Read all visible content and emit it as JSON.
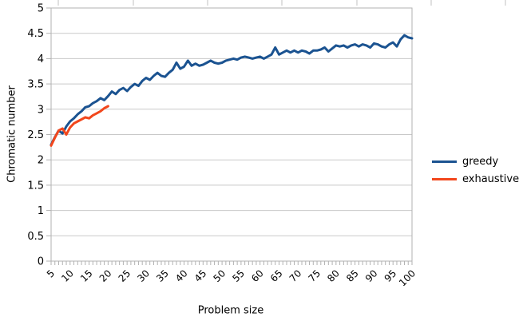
{
  "chart_data": {
    "type": "line",
    "title": "",
    "xlabel": "Problem size",
    "ylabel": "Chromatic number",
    "xlim": [
      5,
      100
    ],
    "ylim": [
      0,
      5
    ],
    "y_tick_step": 0.5,
    "y_tick_labels": [
      "0",
      "0.5",
      "1",
      "1.5",
      "2",
      "2.5",
      "3",
      "3.5",
      "4",
      "4.5",
      "5"
    ],
    "x_tick_label_step": 5,
    "x_minor_tick_step": 1,
    "grid": "horizontal-only",
    "legend_position": "right",
    "colors": {
      "grid": "#c9c9c9",
      "axis": "#b2b2b2",
      "text": "#000000",
      "background": "#ffffff"
    },
    "series": [
      {
        "name": "greedy",
        "color": "#1B5391",
        "x": [
          5,
          6,
          7,
          8,
          9,
          10,
          11,
          12,
          13,
          14,
          15,
          16,
          17,
          18,
          19,
          20,
          21,
          22,
          23,
          24,
          25,
          26,
          27,
          28,
          29,
          30,
          31,
          32,
          33,
          34,
          35,
          36,
          37,
          38,
          39,
          40,
          41,
          42,
          43,
          44,
          45,
          46,
          47,
          48,
          49,
          50,
          51,
          52,
          53,
          54,
          55,
          56,
          57,
          58,
          59,
          60,
          61,
          62,
          63,
          64,
          65,
          66,
          67,
          68,
          69,
          70,
          71,
          72,
          73,
          74,
          75,
          76,
          77,
          78,
          79,
          80,
          81,
          82,
          83,
          84,
          85,
          86,
          87,
          88,
          89,
          90,
          91,
          92,
          93,
          94,
          95,
          96,
          97,
          98,
          99,
          100
        ],
        "values": [
          2.3,
          2.45,
          2.58,
          2.52,
          2.66,
          2.76,
          2.82,
          2.9,
          2.96,
          3.04,
          3.06,
          3.12,
          3.16,
          3.22,
          3.18,
          3.26,
          3.35,
          3.3,
          3.38,
          3.42,
          3.36,
          3.44,
          3.5,
          3.46,
          3.56,
          3.62,
          3.58,
          3.66,
          3.72,
          3.66,
          3.64,
          3.72,
          3.78,
          3.92,
          3.8,
          3.84,
          3.96,
          3.86,
          3.9,
          3.86,
          3.88,
          3.92,
          3.96,
          3.92,
          3.9,
          3.92,
          3.96,
          3.98,
          4.0,
          3.98,
          4.02,
          4.04,
          4.02,
          4.0,
          4.02,
          4.04,
          4.0,
          4.04,
          4.08,
          4.22,
          4.08,
          4.12,
          4.16,
          4.12,
          4.16,
          4.12,
          4.16,
          4.14,
          4.1,
          4.16,
          4.16,
          4.18,
          4.22,
          4.14,
          4.2,
          4.26,
          4.24,
          4.26,
          4.22,
          4.26,
          4.28,
          4.24,
          4.28,
          4.26,
          4.22,
          4.3,
          4.28,
          4.24,
          4.22,
          4.28,
          4.32,
          4.24,
          4.38,
          4.46,
          4.42,
          4.4
        ]
      },
      {
        "name": "exhaustive",
        "color": "#F2471C",
        "x": [
          5,
          6,
          7,
          8,
          9,
          10,
          11,
          12,
          13,
          14,
          15,
          16,
          17,
          18,
          19,
          20
        ],
        "values": [
          2.28,
          2.44,
          2.58,
          2.62,
          2.5,
          2.64,
          2.72,
          2.76,
          2.8,
          2.84,
          2.82,
          2.88,
          2.92,
          2.96,
          3.02,
          3.06
        ]
      }
    ]
  },
  "decorations": {
    "top_cell_marks_x": [
      73,
      167,
      260,
      353,
      447,
      540,
      633
    ]
  }
}
